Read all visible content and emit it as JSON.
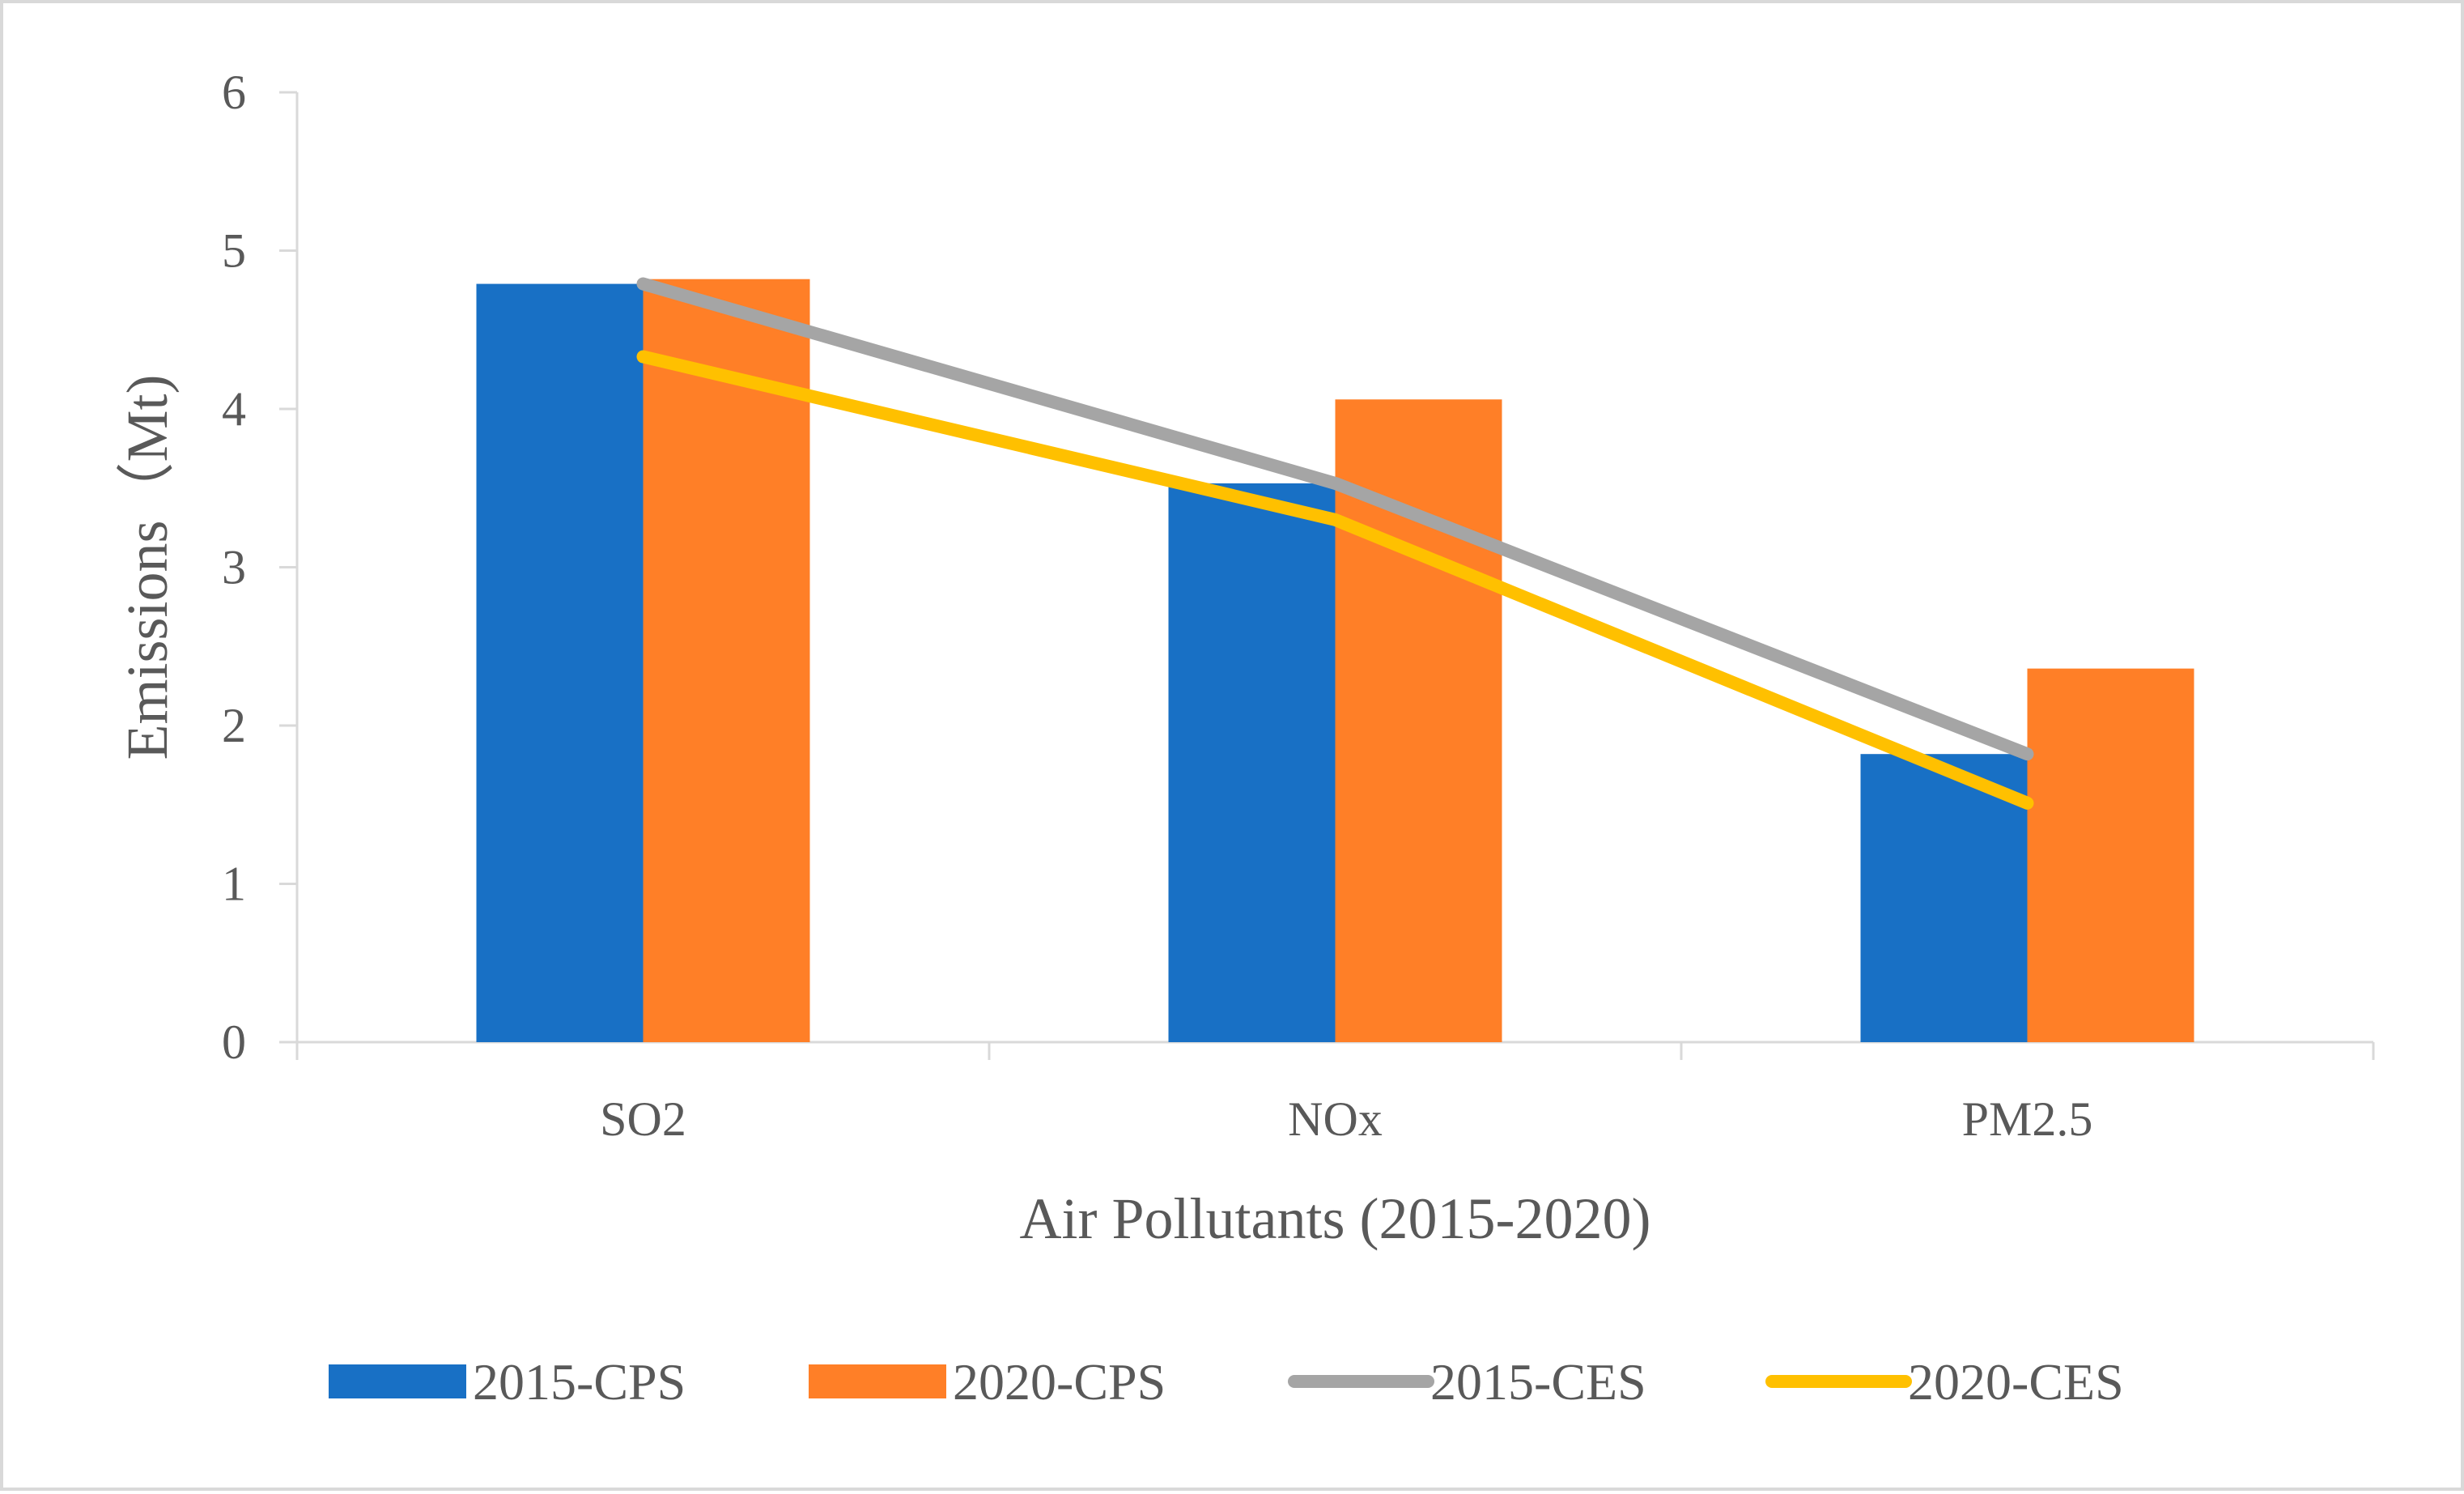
{
  "chart_data": {
    "type": "bar",
    "title": "",
    "xlabel": "Air Pollutants (2015-2020)",
    "ylabel": "Emissions（Mt)",
    "ylim": [
      0,
      6
    ],
    "yticks": [
      "0",
      "1",
      "2",
      "3",
      "4",
      "5",
      "6"
    ],
    "grid": false,
    "legend_position": "bottom",
    "categories": [
      "SO2",
      "NOx",
      "PM2.5"
    ],
    "series": [
      {
        "name": "2015-CPS",
        "kind": "bar",
        "color": "#1870C5",
        "values": [
          4.79,
          3.53,
          1.82
        ]
      },
      {
        "name": "2020-CPS",
        "kind": "bar",
        "color": "#FF7F27",
        "values": [
          4.82,
          4.06,
          2.36
        ]
      },
      {
        "name": "2015-CES",
        "kind": "line",
        "color": "#A5A5A5",
        "values": [
          4.79,
          3.53,
          1.82
        ]
      },
      {
        "name": "2020-CES",
        "kind": "line",
        "color": "#FFC000",
        "values": [
          4.33,
          3.3,
          1.51
        ]
      }
    ]
  }
}
